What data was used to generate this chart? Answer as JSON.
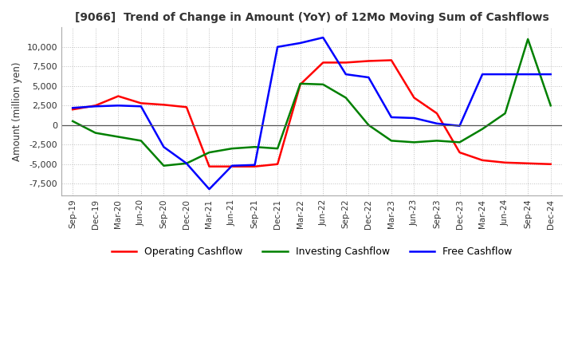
{
  "title": "[9066]  Trend of Change in Amount (YoY) of 12Mo Moving Sum of Cashflows",
  "ylabel": "Amount (million yen)",
  "yticks": [
    -7500,
    -5000,
    -2500,
    0,
    2500,
    5000,
    7500,
    10000
  ],
  "ylim": [
    -9000,
    12500
  ],
  "x_labels": [
    "Sep-19",
    "Dec-19",
    "Mar-20",
    "Jun-20",
    "Sep-20",
    "Dec-20",
    "Mar-21",
    "Jun-21",
    "Sep-21",
    "Dec-21",
    "Mar-22",
    "Jun-22",
    "Sep-22",
    "Dec-22",
    "Mar-23",
    "Jun-23",
    "Sep-23",
    "Dec-23",
    "Mar-24",
    "Jun-24",
    "Sep-24",
    "Dec-24"
  ],
  "operating": [
    2000,
    2500,
    3700,
    2800,
    2600,
    2300,
    -5300,
    -5300,
    -5300,
    -5000,
    5200,
    8000,
    8000,
    8200,
    8300,
    3500,
    1500,
    -3500,
    -4500,
    -4800,
    -4900,
    -5000
  ],
  "investing": [
    500,
    -1000,
    -1500,
    -2000,
    -5200,
    -4900,
    -3500,
    -3000,
    -2800,
    -3000,
    5300,
    5200,
    3500,
    0,
    -2000,
    -2200,
    -2000,
    -2200,
    -500,
    1500,
    11000,
    2500
  ],
  "free": [
    2200,
    2400,
    2500,
    2400,
    -2800,
    -4900,
    -8200,
    -5200,
    -5100,
    10000,
    10500,
    11200,
    6500,
    6100,
    1000,
    900,
    200,
    -100,
    6500,
    6500,
    6500,
    6500
  ],
  "op_color": "#ff0000",
  "inv_color": "#008000",
  "free_color": "#0000ff",
  "bg_color": "#ffffff",
  "grid_color": "#c0c0c0"
}
